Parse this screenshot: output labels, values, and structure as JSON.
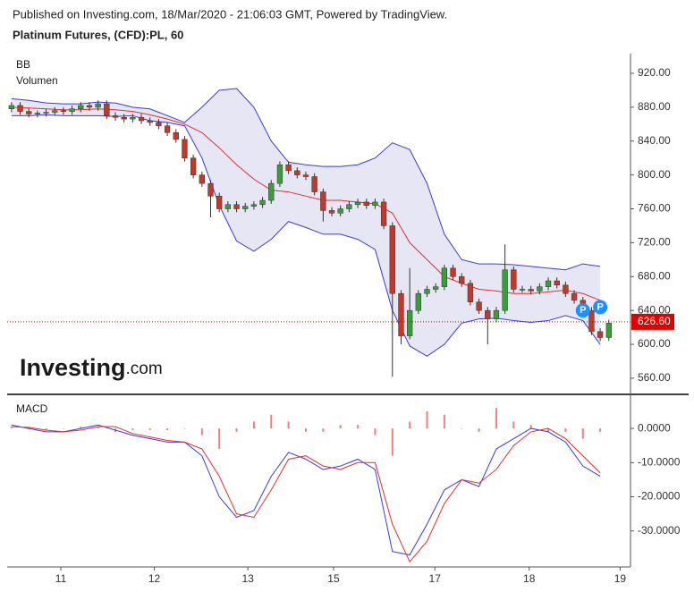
{
  "chart_data": {
    "type": "candlestick",
    "published": "Published on Investing.com, 18/Mar/2020 - 21:06:03 GMT, Powered by TradingView.",
    "title": "Platinum Futures, (CFD):PL, 60",
    "indicator_labels": [
      "BB",
      "Volumen"
    ],
    "logo": {
      "main": "Investing",
      "suffix": ".com"
    },
    "xlim": [
      -0.5,
      71.5
    ],
    "xticks": [
      {
        "value": 5.7,
        "label": "11"
      },
      {
        "value": 16.5,
        "label": "12"
      },
      {
        "value": 27.3,
        "label": "13"
      },
      {
        "value": 37.2,
        "label": "15"
      },
      {
        "value": 48.9,
        "label": "17"
      },
      {
        "value": 59.8,
        "label": "18"
      },
      {
        "value": 70.3,
        "label": "19"
      }
    ],
    "ylim": [
      542,
      943.2
    ],
    "yticks": [
      {
        "value": 920,
        "label": "920.00"
      },
      {
        "value": 880,
        "label": "880.00"
      },
      {
        "value": 840,
        "label": "840.00"
      },
      {
        "value": 800,
        "label": "800.00"
      },
      {
        "value": 760,
        "label": "760.00"
      },
      {
        "value": 720,
        "label": "720.00"
      },
      {
        "value": 680,
        "label": "680.00"
      },
      {
        "value": 640,
        "label": "640.00"
      },
      {
        "value": 600,
        "label": "600.00"
      },
      {
        "value": 560,
        "label": "560.00"
      }
    ],
    "up_color": "#3a9d3a",
    "down_color": "#c0392b",
    "open": [
      878,
      882,
      875,
      872,
      873,
      874,
      876,
      875,
      878,
      882,
      880,
      884,
      870,
      868,
      866,
      868,
      864,
      862,
      858,
      850,
      842,
      820,
      800,
      790,
      775,
      760,
      765,
      760,
      763,
      765,
      770,
      790,
      812,
      805,
      800,
      798,
      780,
      758,
      755,
      760,
      765,
      768,
      764,
      768,
      740,
      660,
      610,
      640,
      660,
      665,
      668,
      690,
      680,
      672,
      650,
      640,
      630,
      640,
      688,
      665,
      665,
      663,
      668,
      675,
      670,
      660,
      652,
      640,
      615,
      608
    ],
    "high": [
      886,
      886,
      879,
      876,
      878,
      880,
      880,
      882,
      886,
      886,
      888,
      888,
      874,
      872,
      872,
      872,
      868,
      866,
      862,
      854,
      846,
      824,
      804,
      794,
      779,
      769,
      769,
      767,
      769,
      774,
      794,
      816,
      816,
      809,
      804,
      802,
      784,
      762,
      764,
      769,
      772,
      772,
      772,
      772,
      744,
      664,
      690,
      664,
      669,
      672,
      694,
      694,
      684,
      676,
      654,
      644,
      644,
      718,
      692,
      669,
      669,
      672,
      679,
      679,
      674,
      664,
      656,
      644,
      619,
      629
    ],
    "low": [
      874,
      871,
      868,
      868,
      869,
      870,
      871,
      871,
      874,
      876,
      876,
      866,
      864,
      862,
      862,
      860,
      858,
      854,
      846,
      838,
      816,
      796,
      786,
      750,
      756,
      756,
      756,
      756,
      759,
      761,
      766,
      786,
      801,
      796,
      794,
      776,
      745,
      751,
      751,
      756,
      761,
      760,
      760,
      736,
      562,
      600,
      606,
      636,
      656,
      661,
      664,
      676,
      668,
      646,
      636,
      600,
      626,
      636,
      661,
      661,
      659,
      659,
      664,
      666,
      656,
      648,
      636,
      611,
      604,
      604
    ],
    "close": [
      882,
      875,
      872,
      873,
      874,
      876,
      875,
      878,
      882,
      880,
      884,
      870,
      868,
      866,
      868,
      864,
      862,
      858,
      850,
      842,
      820,
      800,
      790,
      775,
      760,
      765,
      760,
      763,
      765,
      770,
      790,
      812,
      805,
      800,
      798,
      780,
      758,
      755,
      760,
      765,
      768,
      764,
      768,
      740,
      660,
      610,
      640,
      660,
      665,
      668,
      690,
      680,
      672,
      650,
      640,
      630,
      640,
      688,
      665,
      665,
      663,
      668,
      675,
      670,
      660,
      652,
      640,
      615,
      608,
      625
    ],
    "bands": {
      "x": [
        0,
        2,
        4,
        6,
        8,
        10,
        12,
        14,
        16,
        18,
        20,
        22,
        24,
        26,
        28,
        30,
        32,
        34,
        36,
        38,
        40,
        42,
        44,
        46,
        48,
        50,
        52,
        54,
        56,
        58,
        60,
        62,
        64,
        66,
        68
      ],
      "fill": "#dcdcf0",
      "series": [
        {
          "name": "upper",
          "color": "#3b3bdc",
          "values": [
            890,
            888,
            885,
            884,
            884,
            886,
            885,
            880,
            878,
            870,
            862,
            880,
            900,
            902,
            880,
            840,
            815,
            812,
            810,
            810,
            812,
            820,
            838,
            830,
            790,
            730,
            700,
            695,
            695,
            694,
            692,
            690,
            688,
            695,
            692
          ]
        },
        {
          "name": "basis",
          "color": "#e03030",
          "values": [
            880,
            879,
            878,
            877,
            877,
            878,
            877,
            875,
            871,
            866,
            860,
            850,
            832,
            812,
            795,
            782,
            780,
            775,
            770,
            770,
            768,
            766,
            755,
            720,
            700,
            680,
            672,
            665,
            663,
            660,
            660,
            662,
            664,
            660,
            652
          ]
        },
        {
          "name": "lower",
          "color": "#3b3bdc",
          "values": [
            870,
            870,
            871,
            870,
            870,
            870,
            869,
            870,
            864,
            862,
            858,
            820,
            764,
            722,
            710,
            724,
            745,
            738,
            730,
            730,
            724,
            712,
            640,
            598,
            586,
            600,
            625,
            630,
            631,
            628,
            626,
            628,
            634,
            628,
            600
          ]
        }
      ]
    },
    "current_price": {
      "value": 626.6,
      "label": "626.60",
      "color": "#e00000"
    },
    "markers": [
      {
        "x": 66,
        "y": 640,
        "label": "P"
      },
      {
        "x": 68,
        "y": 644,
        "label": "P"
      }
    ],
    "macd": {
      "label": "MACD",
      "ylim": [
        -40,
        9.7
      ],
      "yticks": [
        {
          "value": 0,
          "label": "0.0000"
        },
        {
          "value": -10,
          "label": "-10.0000"
        },
        {
          "value": -20,
          "label": "-20.0000"
        },
        {
          "value": -30,
          "label": "-30.0000"
        }
      ],
      "x": [
        0,
        2,
        4,
        6,
        8,
        10,
        12,
        14,
        16,
        18,
        20,
        22,
        24,
        26,
        28,
        30,
        32,
        34,
        36,
        38,
        40,
        42,
        44,
        46,
        48,
        50,
        52,
        54,
        56,
        58,
        60,
        62,
        64,
        66,
        68
      ],
      "histogram": {
        "color": "#f08080",
        "values": [
          0.5,
          -0.3,
          -0.5,
          0,
          0.5,
          0.5,
          -1,
          -0.5,
          -0.5,
          -0.5,
          0,
          -2,
          -6,
          -1,
          2,
          4,
          2,
          -1,
          -1,
          1,
          1,
          -2,
          -8,
          2,
          5,
          4,
          0,
          -1,
          6,
          2,
          1,
          -1,
          -1,
          -3,
          -1
        ]
      },
      "series": [
        {
          "name": "macd",
          "color": "#3b3bdc",
          "values": [
            1,
            0,
            -1,
            -1,
            0,
            1,
            -0.5,
            -2,
            -3,
            -4,
            -4,
            -8,
            -20,
            -26,
            -24,
            -14,
            -7,
            -9,
            -12,
            -11,
            -9,
            -12,
            -36,
            -37,
            -28,
            -18,
            -15,
            -17,
            -6,
            -3,
            0,
            -1,
            -4,
            -11,
            -14
          ]
        },
        {
          "name": "signal",
          "color": "#e03030",
          "values": [
            0.5,
            0.3,
            -0.5,
            -1,
            -0.5,
            0.5,
            0.5,
            -1.5,
            -2.5,
            -3.5,
            -4,
            -6,
            -14,
            -25,
            -26,
            -18,
            -9,
            -8,
            -11,
            -12,
            -10,
            -10,
            -28,
            -39,
            -33,
            -22,
            -15,
            -16,
            -12,
            -5,
            -1,
            0,
            -3,
            -8,
            -13
          ]
        }
      ]
    }
  }
}
